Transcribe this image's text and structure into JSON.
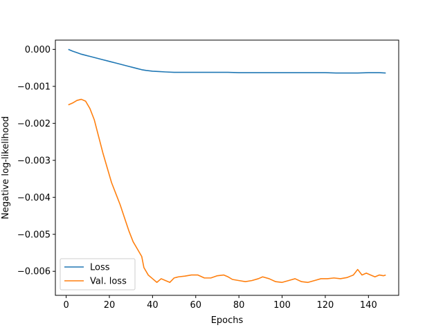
{
  "chart_data": {
    "type": "line",
    "xlabel": "Epochs",
    "ylabel": "Negative log-likelihood",
    "xlim": [
      -5,
      154
    ],
    "ylim": [
      -0.00665,
      0.00025
    ],
    "xticks": [
      0,
      20,
      40,
      60,
      80,
      100,
      120,
      140
    ],
    "xtick_labels": [
      "0",
      "20",
      "40",
      "60",
      "80",
      "100",
      "120",
      "140"
    ],
    "yticks": [
      0.0,
      -0.001,
      -0.002,
      -0.003,
      -0.004,
      -0.005,
      -0.006
    ],
    "ytick_labels": [
      "0.000",
      "−0.001",
      "−0.002",
      "−0.003",
      "−0.004",
      "−0.005",
      "−0.006"
    ],
    "grid": false,
    "legend_position": "lower-left",
    "series": [
      {
        "name": "Loss",
        "color": "#1f77b4",
        "x": [
          1,
          3,
          5,
          7,
          9,
          11,
          13,
          15,
          17,
          19,
          21,
          23,
          25,
          27,
          29,
          31,
          33,
          35,
          37,
          40,
          43,
          46,
          50,
          55,
          60,
          65,
          70,
          75,
          80,
          85,
          90,
          95,
          100,
          105,
          110,
          115,
          120,
          125,
          130,
          135,
          140,
          145,
          148
        ],
        "y": [
          0.0,
          -5e-05,
          -9e-05,
          -0.00013,
          -0.00016,
          -0.00019,
          -0.00022,
          -0.00025,
          -0.00028,
          -0.00031,
          -0.00034,
          -0.00037,
          -0.0004,
          -0.00043,
          -0.00046,
          -0.00049,
          -0.00052,
          -0.00055,
          -0.00057,
          -0.00059,
          -0.0006,
          -0.00061,
          -0.00062,
          -0.00062,
          -0.00062,
          -0.00062,
          -0.00062,
          -0.00062,
          -0.00063,
          -0.00063,
          -0.00063,
          -0.00063,
          -0.00063,
          -0.00063,
          -0.00063,
          -0.00063,
          -0.00063,
          -0.00064,
          -0.00064,
          -0.00064,
          -0.00063,
          -0.00063,
          -0.00064
        ]
      },
      {
        "name": "Val. loss",
        "color": "#ff7f0e",
        "x": [
          1,
          3,
          5,
          7,
          9,
          11,
          13,
          15,
          17,
          19,
          21,
          23,
          25,
          27,
          29,
          31,
          33,
          35,
          36,
          38,
          40,
          42,
          44,
          46,
          48,
          50,
          52,
          55,
          58,
          61,
          64,
          67,
          70,
          73,
          75,
          77,
          80,
          83,
          86,
          89,
          91,
          94,
          97,
          100,
          103,
          106,
          109,
          112,
          115,
          118,
          121,
          124,
          127,
          130,
          133,
          135,
          137,
          139,
          141,
          143,
          145,
          147,
          148
        ],
        "y": [
          -0.0015,
          -0.00145,
          -0.00138,
          -0.00135,
          -0.0014,
          -0.0016,
          -0.0019,
          -0.00235,
          -0.0028,
          -0.0032,
          -0.0036,
          -0.0039,
          -0.0042,
          -0.00455,
          -0.0049,
          -0.0052,
          -0.0054,
          -0.0056,
          -0.0059,
          -0.0061,
          -0.0062,
          -0.0063,
          -0.0062,
          -0.00625,
          -0.0063,
          -0.00618,
          -0.00615,
          -0.00613,
          -0.0061,
          -0.0061,
          -0.00618,
          -0.00618,
          -0.00612,
          -0.0061,
          -0.00615,
          -0.00622,
          -0.00625,
          -0.00628,
          -0.00625,
          -0.0062,
          -0.00615,
          -0.0062,
          -0.00628,
          -0.0063,
          -0.00625,
          -0.0062,
          -0.00628,
          -0.0063,
          -0.00625,
          -0.0062,
          -0.0062,
          -0.00618,
          -0.0062,
          -0.00617,
          -0.0061,
          -0.00595,
          -0.0061,
          -0.00605,
          -0.0061,
          -0.00615,
          -0.0061,
          -0.00612,
          -0.0061
        ]
      }
    ]
  }
}
